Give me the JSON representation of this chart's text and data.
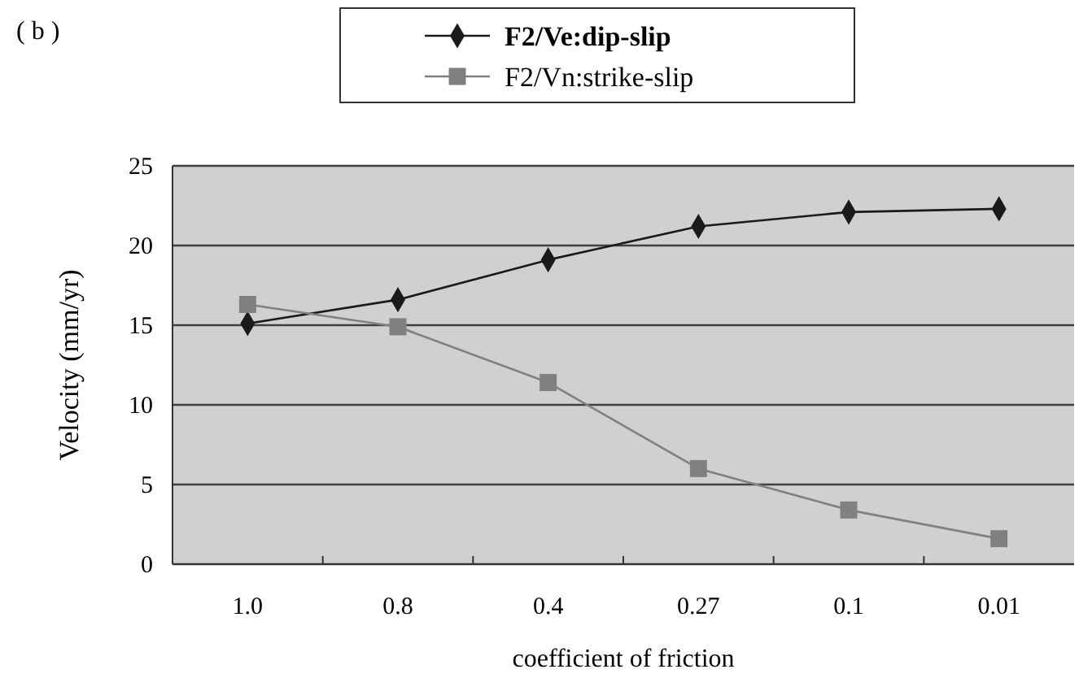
{
  "chart_data": {
    "type": "line",
    "title": "( b )",
    "xlabel": "coefficient of friction",
    "ylabel": "Velocity (mm/yr)",
    "categories": [
      "1.0",
      "0.8",
      "0.4",
      "0.27",
      "0.1",
      "0.01"
    ],
    "series": [
      {
        "name": "F2/Ve:dip-slip",
        "color": "#1a1a1a",
        "marker": "diamond",
        "values": [
          15.1,
          16.6,
          19.1,
          21.2,
          22.1,
          22.3
        ]
      },
      {
        "name": "F2/Vn:strike-slip",
        "color": "#808080",
        "marker": "square",
        "values": [
          16.3,
          14.9,
          11.4,
          6.0,
          3.4,
          1.6
        ]
      }
    ],
    "ylim": [
      0,
      25
    ],
    "yticks": [
      0,
      5,
      10,
      15,
      20,
      25
    ],
    "grid": "y",
    "legend": "top",
    "line_style": "solid"
  }
}
